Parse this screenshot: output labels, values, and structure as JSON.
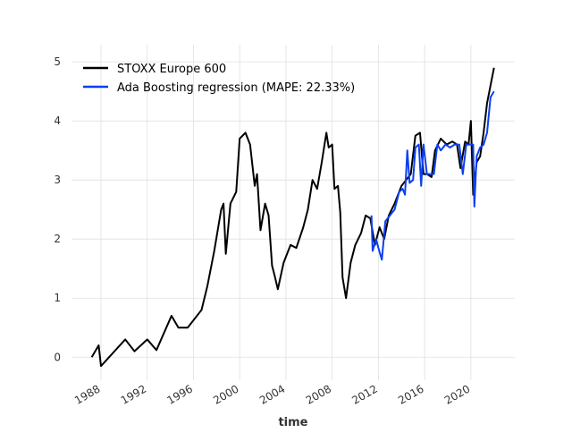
{
  "chart_data": {
    "type": "line",
    "xlabel": "time",
    "xlim": [
      1985.45,
      2023.8
    ],
    "xticks": [
      1988,
      1992,
      1996,
      2000,
      2004,
      2008,
      2012,
      2016,
      2020
    ],
    "ylim": [
      -0.39,
      5.29
    ],
    "yticks": [
      0,
      1,
      2,
      3,
      4,
      5
    ],
    "grid": true,
    "legend": "upper left",
    "series": [
      {
        "name": "STOXX Europe 600",
        "color": "#000000",
        "x": [
          1987.2,
          1987.8,
          1988.0,
          1990.1,
          1990.9,
          1992.0,
          1992.8,
          1994.1,
          1994.7,
          1995.5,
          1996.7,
          1997.2,
          1997.8,
          1998.4,
          1998.6,
          1998.8,
          1999.2,
          1999.7,
          2000.0,
          2000.5,
          2000.9,
          2001.3,
          2001.5,
          2001.8,
          2002.2,
          2002.5,
          2002.8,
          2003.0,
          2003.3,
          2003.8,
          2004.4,
          2004.9,
          2005.5,
          2005.9,
          2006.3,
          2006.7,
          2007.1,
          2007.5,
          2007.7,
          2008.0,
          2008.2,
          2008.5,
          2008.7,
          2008.9,
          2009.2,
          2009.6,
          2010.0,
          2010.5,
          2010.9,
          2011.3,
          2011.7,
          2012.1,
          2012.5,
          2012.9,
          2013.4,
          2014.0,
          2014.4,
          2014.8,
          2015.2,
          2015.6,
          2015.9,
          2016.2,
          2016.6,
          2016.9,
          2017.4,
          2017.9,
          2018.4,
          2018.8,
          2019.1,
          2019.5,
          2019.8,
          2020.0,
          2020.2,
          2020.5,
          2020.8,
          2021.1,
          2021.4,
          2021.7,
          2022.0
        ],
        "values": [
          0,
          0.2,
          -0.15,
          0.3,
          0.1,
          0.3,
          0.12,
          0.7,
          0.5,
          0.5,
          0.8,
          1.2,
          1.8,
          2.5,
          2.6,
          1.75,
          2.6,
          2.8,
          3.7,
          3.8,
          3.6,
          2.9,
          3.1,
          2.15,
          2.6,
          2.4,
          1.55,
          1.4,
          1.15,
          1.6,
          1.9,
          1.85,
          2.2,
          2.5,
          3.0,
          2.85,
          3.3,
          3.8,
          3.55,
          3.6,
          2.85,
          2.9,
          2.45,
          1.35,
          1.0,
          1.6,
          1.9,
          2.1,
          2.4,
          2.35,
          1.9,
          2.2,
          2.0,
          2.4,
          2.6,
          2.9,
          3.0,
          3.1,
          3.75,
          3.8,
          3.1,
          3.1,
          3.05,
          3.5,
          3.7,
          3.6,
          3.65,
          3.6,
          3.2,
          3.65,
          3.6,
          4.0,
          2.75,
          3.3,
          3.4,
          3.8,
          4.3,
          4.6,
          4.9
        ]
      },
      {
        "name": "Ada Boosting regression (MAPE: 22.33%)",
        "color": "#0b3ff0",
        "x": [
          2011.4,
          2011.5,
          2011.8,
          2012.0,
          2012.3,
          2012.6,
          2013.0,
          2013.4,
          2013.8,
          2014.1,
          2014.3,
          2014.5,
          2014.7,
          2015.0,
          2015.2,
          2015.5,
          2015.7,
          2015.9,
          2016.2,
          2016.5,
          2016.8,
          2017.1,
          2017.4,
          2017.8,
          2018.2,
          2018.6,
          2019.0,
          2019.3,
          2019.6,
          2020.0,
          2020.2,
          2020.3,
          2020.5,
          2020.8,
          2021.1,
          2021.4,
          2021.7,
          2022.0
        ],
        "values": [
          2.4,
          1.8,
          2.0,
          1.85,
          1.65,
          2.3,
          2.4,
          2.5,
          2.8,
          2.85,
          2.75,
          3.5,
          2.95,
          3.0,
          3.55,
          3.6,
          2.9,
          3.6,
          3.1,
          3.1,
          3.1,
          3.6,
          3.5,
          3.6,
          3.55,
          3.6,
          3.6,
          3.1,
          3.6,
          3.6,
          3.6,
          2.55,
          3.4,
          3.55,
          3.6,
          3.8,
          4.4,
          4.5
        ]
      }
    ]
  }
}
